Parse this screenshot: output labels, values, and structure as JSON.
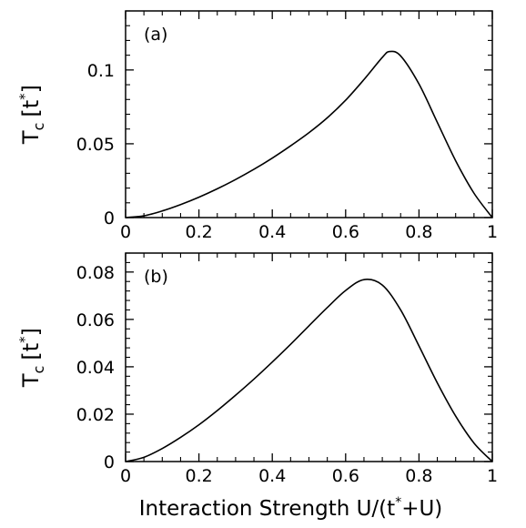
{
  "chart_data": [
    {
      "type": "line",
      "panel_label": "(a)",
      "ylabel": {
        "main": "T",
        "sub": "c",
        "open": "[t",
        "sup": "*",
        "close": "]"
      },
      "xlim": [
        0,
        1
      ],
      "ylim": [
        0,
        0.14
      ],
      "x_ticks": [
        0,
        0.2,
        0.4,
        0.6,
        0.8,
        1
      ],
      "x_tick_labels": [
        "0",
        "0.2",
        "0.4",
        "0.6",
        "0.8",
        "1"
      ],
      "y_ticks": [
        0,
        0.05,
        0.1
      ],
      "y_tick_labels": [
        "0",
        "0.05",
        "0.1"
      ],
      "series": [
        {
          "x": [
            0,
            0.05,
            0.1,
            0.15,
            0.2,
            0.25,
            0.3,
            0.35,
            0.4,
            0.45,
            0.5,
            0.55,
            0.6,
            0.65,
            0.7,
            0.72,
            0.75,
            0.8,
            0.85,
            0.9,
            0.95,
            1.0
          ],
          "y": [
            0,
            0.0012,
            0.0045,
            0.0088,
            0.0138,
            0.0195,
            0.0258,
            0.0327,
            0.0403,
            0.0486,
            0.0575,
            0.0676,
            0.0795,
            0.0935,
            0.1085,
            0.1125,
            0.1095,
            0.0905,
            0.0645,
            0.0385,
            0.0165,
            0
          ]
        }
      ]
    },
    {
      "type": "line",
      "panel_label": "(b)",
      "ylabel": {
        "main": "T",
        "sub": "c",
        "open": "[t",
        "sup": "*",
        "close": "]"
      },
      "xlim": [
        0,
        1
      ],
      "ylim": [
        0,
        0.088
      ],
      "x_ticks": [
        0,
        0.2,
        0.4,
        0.6,
        0.8,
        1
      ],
      "x_tick_labels": [
        "0",
        "0.2",
        "0.4",
        "0.6",
        "0.8",
        "1"
      ],
      "y_ticks": [
        0,
        0.02,
        0.04,
        0.06,
        0.08
      ],
      "y_tick_labels": [
        "0",
        "0.02",
        "0.04",
        "0.06",
        "0.08"
      ],
      "xlabel": {
        "main": "Interaction Strength U/(t",
        "sup": "*",
        "end": "+U)"
      },
      "series": [
        {
          "x": [
            0,
            0.05,
            0.1,
            0.15,
            0.2,
            0.25,
            0.3,
            0.35,
            0.4,
            0.45,
            0.5,
            0.55,
            0.6,
            0.65,
            0.7,
            0.75,
            0.8,
            0.85,
            0.9,
            0.95,
            1.0
          ],
          "y": [
            0,
            0.0018,
            0.0055,
            0.0102,
            0.0155,
            0.0215,
            0.028,
            0.0348,
            0.042,
            0.0495,
            0.0573,
            0.065,
            0.0722,
            0.0768,
            0.0745,
            0.064,
            0.0488,
            0.0332,
            0.0192,
            0.0078,
            0
          ]
        }
      ]
    }
  ]
}
